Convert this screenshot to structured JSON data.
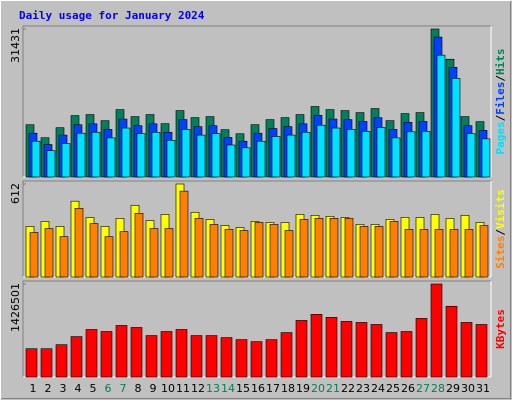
{
  "chart_data": [
    {
      "type": "bar",
      "title": "Daily usage for January 2024",
      "separator": "/",
      "series": [
        {
          "name": "Hits",
          "color": "#00805c",
          "values": [
            11100,
            8340,
            10480,
            13040,
            13260,
            11970,
            14320,
            12830,
            13260,
            11330,
            14110,
            12610,
            12830,
            10050,
            9190,
            11120,
            12190,
            12610,
            13260,
            14970,
            14320,
            14110,
            13680,
            14540,
            11970,
            13470,
            13680,
            31431,
            25010,
            12830,
            11760
          ]
        },
        {
          "name": "Files",
          "color": "#0040ff",
          "values": [
            9300,
            6900,
            8900,
            11100,
            11300,
            10100,
            12300,
            10900,
            11300,
            9500,
            12200,
            10700,
            10900,
            8400,
            7600,
            9300,
            10300,
            10700,
            11300,
            13100,
            12300,
            12200,
            11800,
            12600,
            10100,
            11600,
            11800,
            29720,
            23300,
            10900,
            9900
          ]
        },
        {
          "name": "Pages",
          "color": "#00e0ff",
          "values": [
            7600,
            5600,
            7100,
            9300,
            9500,
            8300,
            10400,
            9200,
            9500,
            7800,
            10100,
            8900,
            9200,
            6800,
            6200,
            7600,
            8600,
            8900,
            9500,
            11000,
            10400,
            10100,
            9700,
            10500,
            8300,
            9600,
            9700,
            25870,
            20950,
            9200,
            8100
          ]
        }
      ],
      "ylim": [
        0,
        31431
      ],
      "yticks": [
        31431
      ]
    },
    {
      "type": "bar",
      "separator": "/",
      "series": [
        {
          "name": "Visits",
          "color": "#ffff00",
          "values": [
            333,
            366,
            333,
            499,
            392,
            333,
            386,
            472,
            372,
            412,
            612,
            426,
            379,
            339,
            326,
            366,
            359,
            359,
            412,
            406,
            399,
            392,
            346,
            346,
            379,
            392,
            392,
            412,
            386,
            406,
            359
          ]
        },
        {
          "name": "Sites",
          "color": "#ff8000",
          "values": [
            293,
            319,
            266,
            452,
            352,
            266,
            299,
            419,
            319,
            319,
            565,
            386,
            346,
            313,
            306,
            359,
            346,
            306,
            379,
            386,
            386,
            386,
            333,
            333,
            366,
            313,
            313,
            313,
            313,
            313,
            339
          ]
        }
      ],
      "ylim": [
        0,
        612
      ],
      "yticks": [
        612
      ]
    },
    {
      "type": "bar",
      "series": [
        {
          "name": "KBytes",
          "color": "#ff0000",
          "values": [
            434000,
            434000,
            496000,
            620000,
            729000,
            698000,
            791000,
            760000,
            636000,
            698000,
            729000,
            636000,
            636000,
            605000,
            574000,
            543000,
            574000,
            682000,
            868000,
            961000,
            915000,
            853000,
            837000,
            806000,
            682000,
            698000,
            899000,
            1426501,
            1085000,
            837000,
            806000
          ]
        }
      ],
      "ylim": [
        0,
        1426501
      ],
      "yticks": [
        1426501
      ],
      "categories": [
        "1",
        "2",
        "3",
        "4",
        "5",
        "6",
        "7",
        "8",
        "9",
        "10",
        "11",
        "12",
        "13",
        "14",
        "15",
        "16",
        "17",
        "18",
        "19",
        "20",
        "21",
        "22",
        "23",
        "24",
        "25",
        "26",
        "27",
        "28",
        "29",
        "30",
        "31"
      ],
      "label_colors": [
        "#000000",
        "#000000",
        "#000000",
        "#000000",
        "#000000",
        "#00805c",
        "#00805c",
        "#000000",
        "#000000",
        "#000000",
        "#000000",
        "#000000",
        "#00805c",
        "#00805c",
        "#000000",
        "#000000",
        "#000000",
        "#000000",
        "#000000",
        "#00805c",
        "#00805c",
        "#000000",
        "#000000",
        "#000000",
        "#000000",
        "#000000",
        "#00805c",
        "#00805c",
        "#000000",
        "#000000",
        "#000000"
      ]
    }
  ]
}
